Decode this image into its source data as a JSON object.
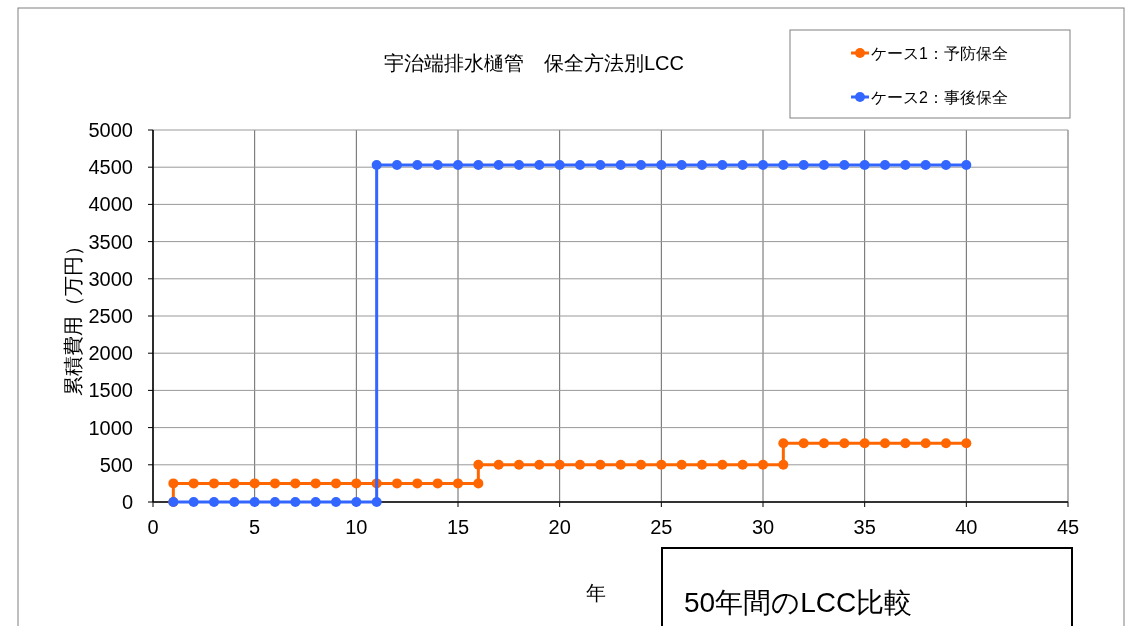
{
  "chart_data": {
    "type": "line",
    "title": "宇治端排水樋管　保全方法別LCC",
    "xlabel": "年",
    "ylabel": "累積費用（万円）",
    "xlim": [
      0,
      45
    ],
    "xticks": [
      0,
      5,
      10,
      15,
      20,
      25,
      30,
      35,
      40,
      45
    ],
    "ylim": [
      0,
      5000
    ],
    "yticks": [
      0,
      500,
      1000,
      1500,
      2000,
      2500,
      3000,
      3500,
      4000,
      4500,
      5000
    ],
    "grid": true,
    "legend": "top right",
    "marker": "circle",
    "line_style": "solid",
    "series": [
      {
        "name": "ケース1：予防保全",
        "color": "#ff6600",
        "x": [
          1,
          1,
          2,
          3,
          4,
          5,
          6,
          7,
          8,
          9,
          10,
          11,
          12,
          13,
          14,
          15,
          16,
          16,
          17,
          18,
          19,
          20,
          21,
          22,
          23,
          24,
          25,
          26,
          27,
          28,
          29,
          30,
          31,
          31,
          32,
          33,
          34,
          35,
          36,
          37,
          38,
          39,
          40
        ],
        "values": [
          0,
          250,
          250,
          250,
          250,
          250,
          250,
          250,
          250,
          250,
          250,
          250,
          250,
          250,
          250,
          250,
          250,
          500,
          500,
          500,
          500,
          500,
          500,
          500,
          500,
          500,
          500,
          500,
          500,
          500,
          500,
          500,
          500,
          790,
          790,
          790,
          790,
          790,
          790,
          790,
          790,
          790,
          790
        ]
      },
      {
        "name": "ケース2：事後保全",
        "color": "#3366ff",
        "x": [
          1,
          2,
          3,
          4,
          5,
          6,
          7,
          8,
          9,
          10,
          11,
          11,
          12,
          13,
          14,
          15,
          16,
          17,
          18,
          19,
          20,
          21,
          22,
          23,
          24,
          25,
          26,
          27,
          28,
          29,
          30,
          31,
          32,
          33,
          34,
          35,
          36,
          37,
          38,
          39,
          40
        ],
        "values": [
          0,
          0,
          0,
          0,
          0,
          0,
          0,
          0,
          0,
          0,
          0,
          4530,
          4530,
          4530,
          4530,
          4530,
          4530,
          4530,
          4530,
          4530,
          4530,
          4530,
          4530,
          4530,
          4530,
          4530,
          4530,
          4530,
          4530,
          4530,
          4530,
          4530,
          4530,
          4530,
          4530,
          4530,
          4530,
          4530,
          4530,
          4530,
          4530
        ]
      }
    ],
    "annotations": [
      "50年間のLCC比較"
    ]
  }
}
